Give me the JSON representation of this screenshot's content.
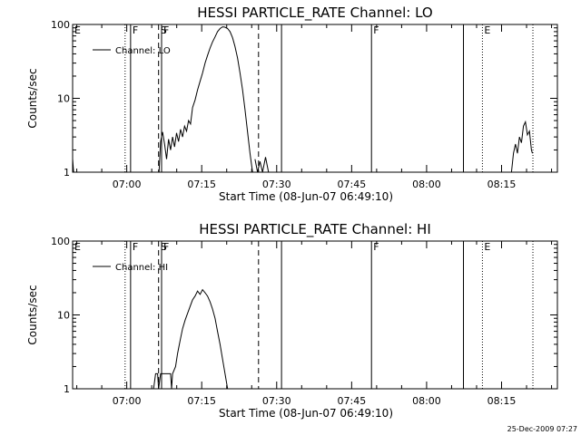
{
  "footer": {
    "timestamp": "25-Dec-2009 07:27"
  },
  "chart_data": [
    {
      "type": "line",
      "title": "HESSI PARTICLE_RATE Channel: LO",
      "xlabel": "Start Time (08-Jun-07 06:49:10)",
      "ylabel": "Counts/sec",
      "x_unit": "minutes after 06:49:10 UT",
      "xlim": [
        0,
        97
      ],
      "ylim": [
        1,
        100
      ],
      "yscale": "log",
      "x_ticks": [
        {
          "label": "07:00",
          "x": 10.83
        },
        {
          "label": "07:15",
          "x": 25.83
        },
        {
          "label": "07:30",
          "x": 40.83
        },
        {
          "label": "07:45",
          "x": 55.83
        },
        {
          "label": "08:00",
          "x": 70.83
        },
        {
          "label": "08:15",
          "x": 85.83
        }
      ],
      "y_ticks": [
        {
          "label": "1",
          "y": 1
        },
        {
          "label": "10",
          "y": 10
        },
        {
          "label": "100",
          "y": 100
        }
      ],
      "legend": {
        "position": "top-left",
        "entries": [
          "Channel: LO"
        ]
      },
      "markers": [
        {
          "x": 0.0,
          "style": "solid",
          "label": "E"
        },
        {
          "x": 10.5,
          "style": "dotted",
          "label": ""
        },
        {
          "x": 11.6,
          "style": "solid",
          "label": "F"
        },
        {
          "x": 17.2,
          "style": "dashed",
          "label": "S"
        },
        {
          "x": 17.8,
          "style": "solid",
          "label": "F"
        },
        {
          "x": 37.2,
          "style": "dashed",
          "label": ""
        },
        {
          "x": 41.8,
          "style": "solid",
          "label": ""
        },
        {
          "x": 59.8,
          "style": "solid",
          "label": "F"
        },
        {
          "x": 78.2,
          "style": "solid",
          "label": ""
        },
        {
          "x": 82.0,
          "style": "dotted",
          "label": "E"
        },
        {
          "x": 92.1,
          "style": "dotted",
          "label": ""
        }
      ],
      "series": [
        {
          "name": "Channel: LO",
          "segments": [
            [
              [
                0.0,
                1.5
              ],
              [
                0.2,
                1.0
              ]
            ],
            [
              [
                17.3,
                1.0
              ],
              [
                17.6,
                2.6
              ],
              [
                18.0,
                3.5
              ],
              [
                18.4,
                2.4
              ],
              [
                18.8,
                1.5
              ],
              [
                19.2,
                2.8
              ],
              [
                19.6,
                2.0
              ],
              [
                20.0,
                3.0
              ],
              [
                20.4,
                2.2
              ],
              [
                20.8,
                3.4
              ],
              [
                21.2,
                2.6
              ],
              [
                21.6,
                3.8
              ],
              [
                22.0,
                3.0
              ],
              [
                22.4,
                4.2
              ],
              [
                22.8,
                3.6
              ],
              [
                23.2,
                5.0
              ],
              [
                23.6,
                4.5
              ],
              [
                24.0,
                7.5
              ],
              [
                24.5,
                9.5
              ],
              [
                25.0,
                13
              ],
              [
                25.5,
                17
              ],
              [
                26.0,
                22
              ],
              [
                26.5,
                30
              ],
              [
                27.0,
                38
              ],
              [
                27.5,
                48
              ],
              [
                28.0,
                58
              ],
              [
                28.5,
                68
              ],
              [
                29.0,
                80
              ],
              [
                29.5,
                88
              ],
              [
                30.0,
                93
              ],
              [
                30.5,
                92
              ],
              [
                31.0,
                88
              ],
              [
                31.5,
                80
              ],
              [
                32.0,
                66
              ],
              [
                32.5,
                50
              ],
              [
                33.0,
                35
              ],
              [
                33.5,
                22
              ],
              [
                34.0,
                13
              ],
              [
                34.5,
                7
              ],
              [
                35.0,
                3.5
              ],
              [
                35.5,
                1.8
              ],
              [
                36.0,
                1.0
              ]
            ],
            [
              [
                36.5,
                1.5
              ],
              [
                37.0,
                1.0
              ],
              [
                37.5,
                1.4
              ],
              [
                38.0,
                1.0
              ],
              [
                38.6,
                1.6
              ],
              [
                39.2,
                1.0
              ]
            ],
            [
              [
                87.8,
                1.0
              ],
              [
                88.2,
                1.8
              ],
              [
                88.6,
                2.4
              ],
              [
                89.0,
                1.8
              ],
              [
                89.4,
                3.0
              ],
              [
                89.8,
                2.5
              ],
              [
                90.2,
                4.2
              ],
              [
                90.6,
                4.8
              ],
              [
                91.0,
                3.2
              ],
              [
                91.4,
                3.6
              ],
              [
                91.8,
                2.0
              ],
              [
                92.0,
                1.8
              ]
            ]
          ]
        }
      ]
    },
    {
      "type": "line",
      "title": "HESSI PARTICLE_RATE Channel: HI",
      "xlabel": "Start Time (08-Jun-07 06:49:10)",
      "ylabel": "Counts/sec",
      "x_unit": "minutes after 06:49:10 UT",
      "xlim": [
        0,
        97
      ],
      "ylim": [
        1,
        100
      ],
      "yscale": "log",
      "x_ticks": [
        {
          "label": "07:00",
          "x": 10.83
        },
        {
          "label": "07:15",
          "x": 25.83
        },
        {
          "label": "07:30",
          "x": 40.83
        },
        {
          "label": "07:45",
          "x": 55.83
        },
        {
          "label": "08:00",
          "x": 70.83
        },
        {
          "label": "08:15",
          "x": 85.83
        }
      ],
      "y_ticks": [
        {
          "label": "1",
          "y": 1
        },
        {
          "label": "10",
          "y": 10
        },
        {
          "label": "100",
          "y": 100
        }
      ],
      "legend": {
        "position": "top-left",
        "entries": [
          "Channel: HI"
        ]
      },
      "markers": [
        {
          "x": 0.0,
          "style": "solid",
          "label": "E"
        },
        {
          "x": 10.5,
          "style": "dotted",
          "label": ""
        },
        {
          "x": 11.6,
          "style": "solid",
          "label": "F"
        },
        {
          "x": 17.2,
          "style": "dashed",
          "label": "S"
        },
        {
          "x": 17.8,
          "style": "solid",
          "label": "F"
        },
        {
          "x": 37.2,
          "style": "dashed",
          "label": ""
        },
        {
          "x": 41.8,
          "style": "solid",
          "label": ""
        },
        {
          "x": 59.8,
          "style": "solid",
          "label": "F"
        },
        {
          "x": 78.2,
          "style": "solid",
          "label": ""
        },
        {
          "x": 82.0,
          "style": "dotted",
          "label": "E"
        },
        {
          "x": 92.1,
          "style": "dotted",
          "label": ""
        }
      ],
      "series": [
        {
          "name": "Channel: HI",
          "segments": [
            [
              [
                16.2,
                1.0
              ],
              [
                16.6,
                1.6
              ],
              [
                17.0,
                1.6
              ],
              [
                17.2,
                1.0
              ],
              [
                17.6,
                1.6
              ],
              [
                19.6,
                1.6
              ],
              [
                19.8,
                1.0
              ],
              [
                20.0,
                1.6
              ],
              [
                20.6,
                2.0
              ],
              [
                21.0,
                3.0
              ],
              [
                21.5,
                4.5
              ],
              [
                22.0,
                6.5
              ],
              [
                22.5,
                8.5
              ],
              [
                23.0,
                10.5
              ],
              [
                23.5,
                13
              ],
              [
                24.0,
                16
              ],
              [
                24.5,
                18
              ],
              [
                25.0,
                21
              ],
              [
                25.5,
                19
              ],
              [
                26.0,
                22
              ],
              [
                26.5,
                20
              ],
              [
                27.0,
                18
              ],
              [
                27.5,
                15
              ],
              [
                28.0,
                12
              ],
              [
                28.5,
                9
              ],
              [
                29.0,
                6
              ],
              [
                29.5,
                4
              ],
              [
                30.0,
                2.5
              ],
              [
                30.5,
                1.6
              ],
              [
                31.0,
                1.0
              ]
            ]
          ]
        }
      ]
    }
  ]
}
